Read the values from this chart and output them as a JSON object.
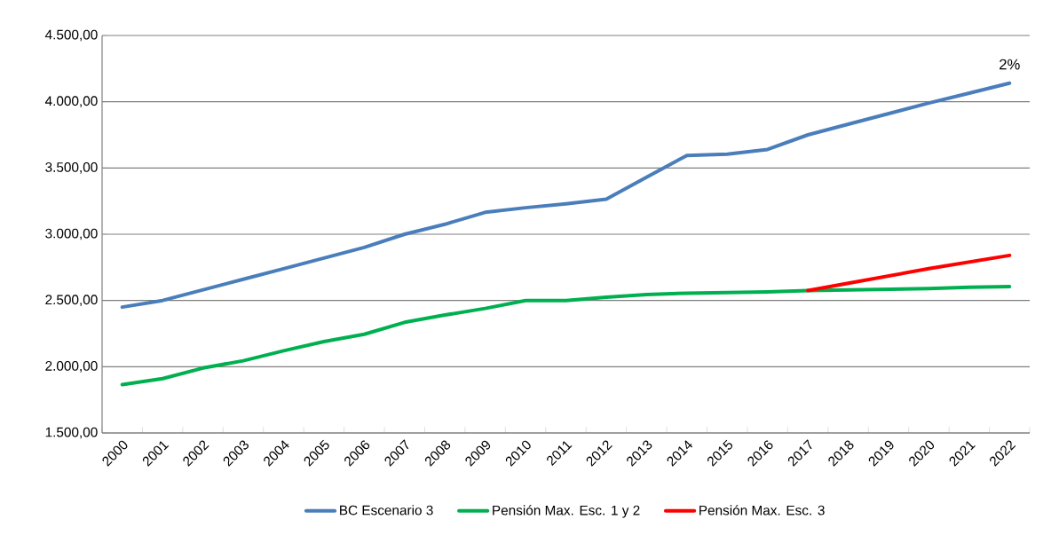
{
  "chart_data": {
    "type": "line",
    "categories": [
      "2000",
      "2001",
      "2002",
      "2003",
      "2004",
      "2005",
      "2006",
      "2007",
      "2008",
      "2009",
      "2010",
      "2011",
      "2012",
      "2013",
      "2014",
      "2015",
      "2016",
      "2017",
      "2018",
      "2019",
      "2020",
      "2021",
      "2022"
    ],
    "series": [
      {
        "name": "BC Escenario 3",
        "color": "#4a7ebb",
        "values": [
          2450,
          2500,
          2580,
          2660,
          2740,
          2820,
          2900,
          3000,
          3075,
          3165,
          3200,
          3230,
          3265,
          3430,
          3595,
          3605,
          3640,
          3750,
          3830,
          3910,
          3990,
          4065,
          4140
        ]
      },
      {
        "name": "Pensión Max. Esc. 1 y 2",
        "color": "#00b050",
        "values": [
          1865,
          1910,
          1990,
          2045,
          2120,
          2190,
          2245,
          2335,
          2390,
          2440,
          2500,
          2500,
          2525,
          2545,
          2555,
          2560,
          2565,
          2575,
          2580,
          2585,
          2590,
          2600,
          2605
        ]
      },
      {
        "name": "Pensión Max. Esc. 3",
        "color": "#ff0000",
        "values": [
          null,
          null,
          null,
          null,
          null,
          null,
          null,
          null,
          null,
          null,
          null,
          null,
          null,
          null,
          null,
          null,
          null,
          2575,
          2630,
          2685,
          2740,
          2790,
          2840
        ]
      }
    ],
    "ylim": [
      1500,
      4500
    ],
    "yticks": [
      {
        "value": 1500,
        "label": "1.500,00"
      },
      {
        "value": 2000,
        "label": "2.000,00"
      },
      {
        "value": 2500,
        "label": "2.500,00"
      },
      {
        "value": 3000,
        "label": "3.000,00"
      },
      {
        "value": 3500,
        "label": "3.500,00"
      },
      {
        "value": 4000,
        "label": "4.000,00"
      },
      {
        "value": 4500,
        "label": "4.500,00"
      }
    ],
    "annotations": [
      {
        "text": "2%",
        "x": "2022",
        "y": 4140
      }
    ],
    "grid": "y",
    "legend": "bottom",
    "marker": "none",
    "line_style": "solid"
  }
}
